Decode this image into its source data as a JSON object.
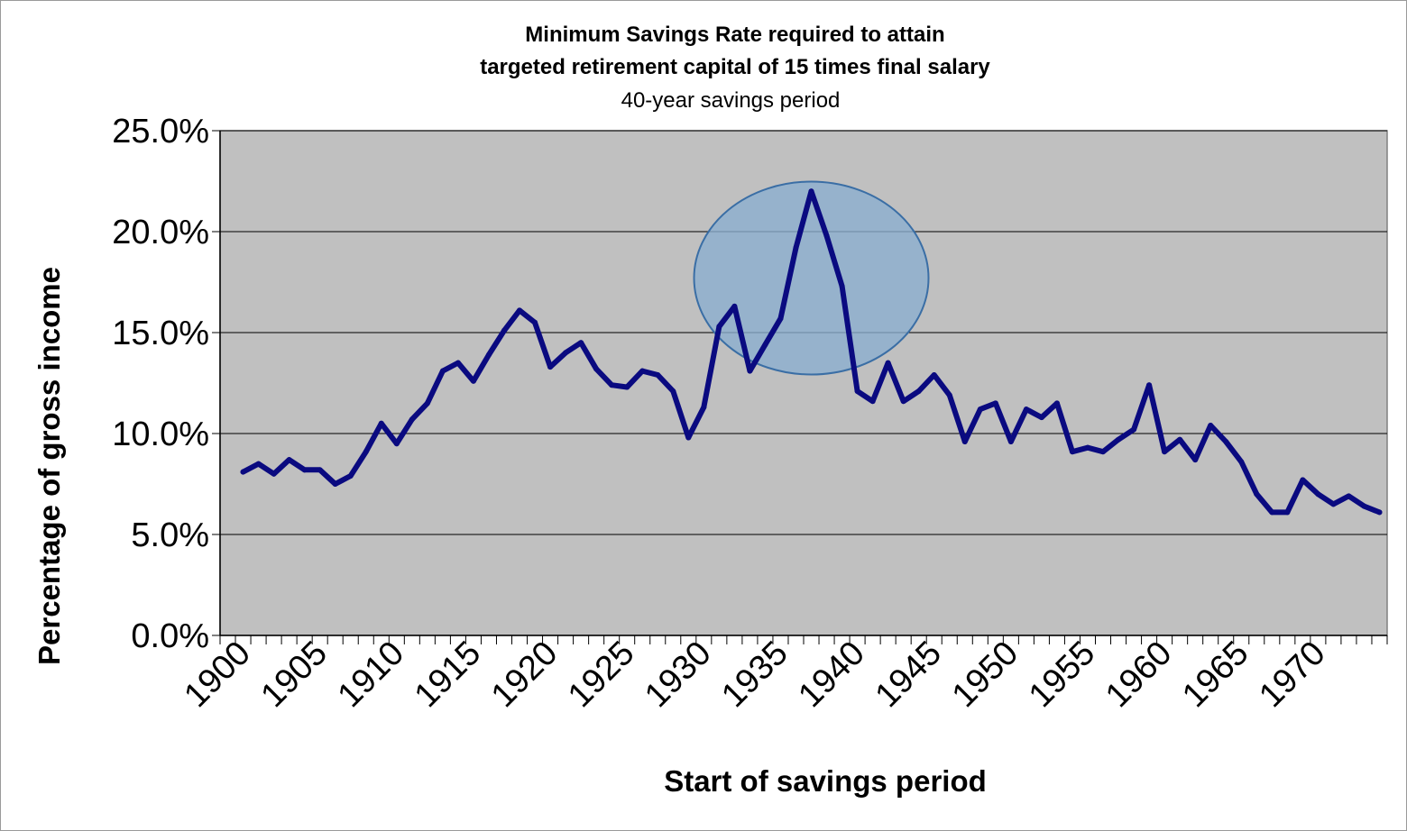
{
  "chart_data": {
    "type": "line",
    "title": "Minimum Savings Rate required to attain",
    "title_line2": "targeted retirement capital of 15 times final salary",
    "subtitle": "40-year savings period",
    "xlabel": "Start of savings period",
    "ylabel": "Percentage of gross income",
    "ylim": [
      0,
      25
    ],
    "ytick_labels": [
      "0.0%",
      "5.0%",
      "10.0%",
      "15.0%",
      "20.0%",
      "25.0%"
    ],
    "ytick_values": [
      0,
      5,
      10,
      15,
      20,
      25
    ],
    "xtick_labels": [
      "1900",
      "1905",
      "1910",
      "1915",
      "1920",
      "1925",
      "1930",
      "1935",
      "1940",
      "1945",
      "1950",
      "1955",
      "1960",
      "1965",
      "1970"
    ],
    "xtick_values": [
      1900,
      1905,
      1910,
      1915,
      1920,
      1925,
      1930,
      1935,
      1940,
      1945,
      1950,
      1955,
      1960,
      1965,
      1970
    ],
    "xlim": [
      1899,
      1974
    ],
    "grid": true,
    "plot_background": "#c0c0c0",
    "series": [
      {
        "color": "#0a0a80",
        "x": [
          1900,
          1901,
          1902,
          1903,
          1904,
          1905,
          1906,
          1907,
          1908,
          1909,
          1910,
          1911,
          1912,
          1913,
          1914,
          1915,
          1916,
          1917,
          1918,
          1919,
          1920,
          1921,
          1922,
          1923,
          1924,
          1925,
          1926,
          1927,
          1928,
          1929,
          1930,
          1931,
          1932,
          1933,
          1934,
          1935,
          1936,
          1937,
          1938,
          1939,
          1940,
          1941,
          1942,
          1943,
          1944,
          1945,
          1946,
          1947,
          1948,
          1949,
          1950,
          1951,
          1952,
          1953,
          1954,
          1955,
          1956,
          1957,
          1958,
          1959,
          1960,
          1961,
          1962,
          1963,
          1964,
          1965,
          1966,
          1967,
          1968,
          1969,
          1970,
          1971,
          1972,
          1973,
          1974
        ],
        "values": [
          8.1,
          8.5,
          8.0,
          8.7,
          8.2,
          8.2,
          7.5,
          7.9,
          9.1,
          10.5,
          9.5,
          10.7,
          11.5,
          13.1,
          13.5,
          12.6,
          13.9,
          15.1,
          16.1,
          15.5,
          13.3,
          14.0,
          14.5,
          13.2,
          12.4,
          12.3,
          13.1,
          12.9,
          12.1,
          9.8,
          11.3,
          15.3,
          16.3,
          13.1,
          14.4,
          15.7,
          19.2,
          22.0,
          19.8,
          17.3,
          12.1,
          11.6,
          13.5,
          11.6,
          12.1,
          12.9,
          11.9,
          9.6,
          11.2,
          11.5,
          9.6,
          11.2,
          10.8,
          11.5,
          9.1,
          9.3,
          9.1,
          9.7,
          10.2,
          12.4,
          9.1,
          9.7,
          8.7,
          10.4,
          9.6,
          8.6,
          7.0,
          6.1,
          6.1,
          7.7,
          7.0,
          6.5,
          6.9,
          6.4,
          6.1
        ]
      }
    ],
    "highlight": {
      "shape": "ellipse",
      "center_x": 1937,
      "center_y": 17.7,
      "fill": "#8aaed0",
      "stroke": "#3a6ea5"
    }
  }
}
